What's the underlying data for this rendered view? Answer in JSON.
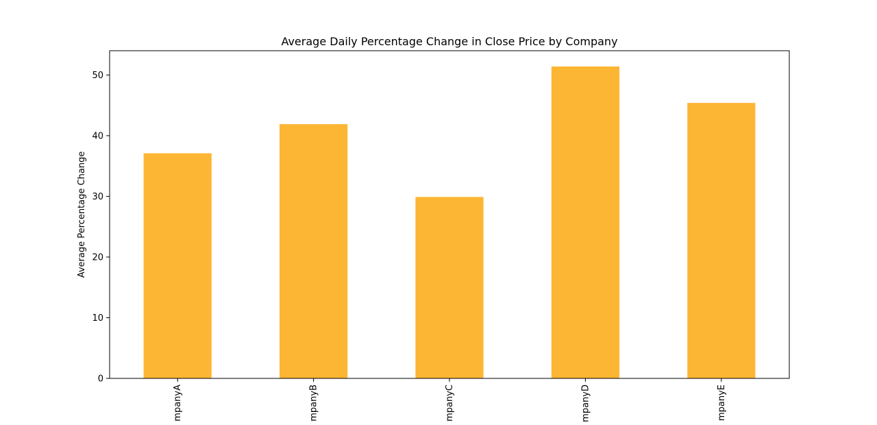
{
  "chart_data": {
    "type": "bar",
    "title": "Average Daily Percentage Change in Close Price by Company",
    "xlabel": "",
    "ylabel": "Average Percentage Change",
    "categories": [
      "mpanyA",
      "mpanyB",
      "mpanyC",
      "mpanyD",
      "mpanyE"
    ],
    "values": [
      37.1,
      41.9,
      29.9,
      51.4,
      45.4
    ],
    "ylim": [
      0,
      54
    ],
    "yticks": [
      0,
      10,
      20,
      30,
      40,
      50
    ],
    "grid": false,
    "legend": "none",
    "bar_color": "#FDB534"
  }
}
